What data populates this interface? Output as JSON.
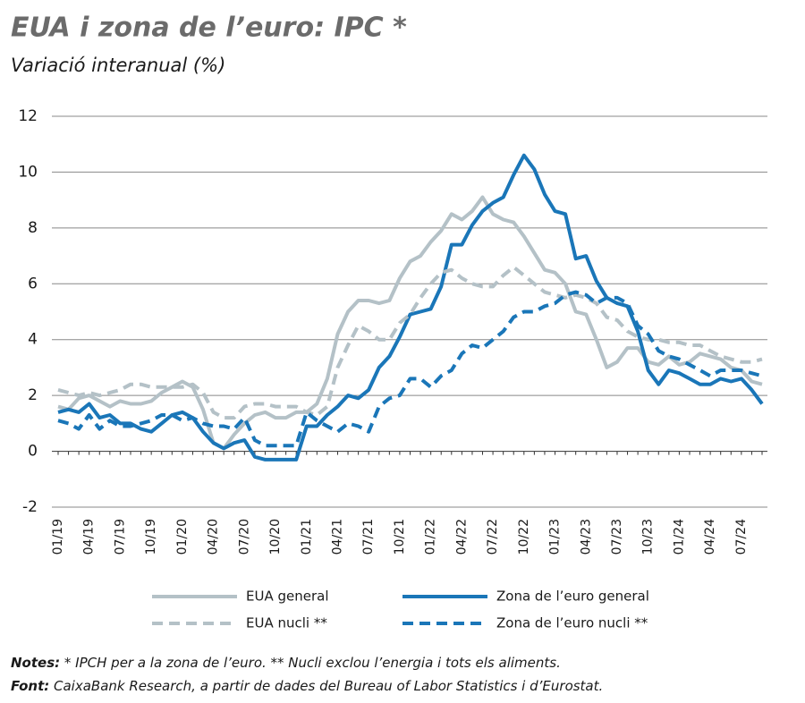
{
  "chart_data": {
    "type": "line",
    "title": "EUA i zona de l’euro: IPC *",
    "subtitle": "Variació interanual (%)",
    "categories": [
      "01/19",
      null,
      null,
      "04/19",
      null,
      null,
      "07/19",
      null,
      null,
      "10/19",
      null,
      null,
      "01/20",
      null,
      null,
      "04/20",
      null,
      null,
      "07/20",
      null,
      null,
      "10/20",
      null,
      null,
      "01/21",
      null,
      null,
      "04/21",
      null,
      null,
      "07/21",
      null,
      null,
      "10/21",
      null,
      null,
      "01/22",
      null,
      null,
      "04/22",
      null,
      null,
      "07/22",
      null,
      null,
      "10/22",
      null,
      null,
      "01/23",
      null,
      null,
      "04/23",
      null,
      null,
      "07/23",
      null,
      null,
      "10/23",
      null,
      null,
      "01/24",
      null,
      null,
      "04/24",
      null,
      null,
      "07/24",
      null,
      null
    ],
    "series": [
      {
        "name": "EUA general",
        "color": "#b4c1c7",
        "dashed": false,
        "values": [
          1.6,
          1.5,
          1.9,
          2.0,
          1.8,
          1.6,
          1.8,
          1.7,
          1.7,
          1.8,
          2.1,
          2.3,
          2.5,
          2.3,
          1.5,
          0.3,
          0.1,
          0.6,
          1.0,
          1.3,
          1.4,
          1.2,
          1.2,
          1.4,
          1.4,
          1.7,
          2.6,
          4.2,
          5.0,
          5.4,
          5.4,
          5.3,
          5.4,
          6.2,
          6.8,
          7.0,
          7.5,
          7.9,
          8.5,
          8.3,
          8.6,
          9.1,
          8.5,
          8.3,
          8.2,
          7.7,
          7.1,
          6.5,
          6.4,
          6.0,
          5.0,
          4.9,
          4.0,
          3.0,
          3.2,
          3.7,
          3.7,
          3.2,
          3.1,
          3.4,
          3.1,
          3.2,
          3.5,
          3.4,
          3.3,
          3.0,
          2.9,
          2.5,
          2.4
        ]
      },
      {
        "name": "Zona de l’euro general",
        "color": "#1a76b8",
        "dashed": false,
        "values": [
          1.4,
          1.5,
          1.4,
          1.7,
          1.2,
          1.3,
          1.0,
          1.0,
          0.8,
          0.7,
          1.0,
          1.3,
          1.4,
          1.2,
          0.7,
          0.3,
          0.1,
          0.3,
          0.4,
          -0.2,
          -0.3,
          -0.3,
          -0.3,
          -0.3,
          0.9,
          0.9,
          1.3,
          1.6,
          2.0,
          1.9,
          2.2,
          3.0,
          3.4,
          4.1,
          4.9,
          5.0,
          5.1,
          5.9,
          7.4,
          7.4,
          8.1,
          8.6,
          8.9,
          9.1,
          9.9,
          10.6,
          10.1,
          9.2,
          8.6,
          8.5,
          6.9,
          7.0,
          6.1,
          5.5,
          5.3,
          5.2,
          4.3,
          2.9,
          2.4,
          2.9,
          2.8,
          2.6,
          2.4,
          2.4,
          2.6,
          2.5,
          2.6,
          2.2,
          1.7
        ]
      },
      {
        "name": "EUA nucli **",
        "color": "#b4c1c7",
        "dashed": true,
        "values": [
          2.2,
          2.1,
          2.0,
          2.1,
          2.0,
          2.1,
          2.2,
          2.4,
          2.4,
          2.3,
          2.3,
          2.3,
          2.3,
          2.4,
          2.1,
          1.4,
          1.2,
          1.2,
          1.6,
          1.7,
          1.7,
          1.6,
          1.6,
          1.6,
          1.4,
          1.3,
          1.6,
          3.0,
          3.8,
          4.5,
          4.3,
          4.0,
          4.0,
          4.6,
          4.9,
          5.5,
          6.0,
          6.4,
          6.5,
          6.2,
          6.0,
          5.9,
          5.9,
          6.3,
          6.6,
          6.3,
          6.0,
          5.7,
          5.6,
          5.5,
          5.6,
          5.5,
          5.3,
          4.8,
          4.7,
          4.3,
          4.1,
          4.0,
          4.0,
          3.9,
          3.9,
          3.8,
          3.8,
          3.6,
          3.4,
          3.3,
          3.2,
          3.2,
          3.3
        ]
      },
      {
        "name": "Zona de l’euro nucli **",
        "color": "#1a76b8",
        "dashed": true,
        "values": [
          1.1,
          1.0,
          0.8,
          1.3,
          0.8,
          1.1,
          0.9,
          0.9,
          1.0,
          1.1,
          1.3,
          1.3,
          1.1,
          1.2,
          1.0,
          0.9,
          0.9,
          0.8,
          1.2,
          0.4,
          0.2,
          0.2,
          0.2,
          0.2,
          1.4,
          1.1,
          0.9,
          0.7,
          1.0,
          0.9,
          0.7,
          1.6,
          1.9,
          2.0,
          2.6,
          2.6,
          2.3,
          2.7,
          2.9,
          3.5,
          3.8,
          3.7,
          4.0,
          4.3,
          4.8,
          5.0,
          5.0,
          5.2,
          5.3,
          5.6,
          5.7,
          5.6,
          5.3,
          5.5,
          5.5,
          5.3,
          4.5,
          4.2,
          3.6,
          3.4,
          3.3,
          3.1,
          2.9,
          2.7,
          2.9,
          2.9,
          2.9,
          2.8,
          2.7
        ]
      }
    ],
    "ylim": [
      -2,
      12
    ],
    "yticks": [
      {
        "value": -2,
        "label": "-2"
      },
      0,
      2,
      4,
      6,
      8,
      10,
      12
    ],
    "grid": true,
    "legend": "bottom"
  },
  "notes": {
    "label": "Notes:",
    "text": " * IPCH per a la zona de l’euro. ** Nucli exclou l’energia i tots els aliments."
  },
  "source": {
    "label": "Font:",
    "text": " CaixaBank Research, a partir de dades del Bureau of Labor Statistics i d’Eurostat."
  }
}
